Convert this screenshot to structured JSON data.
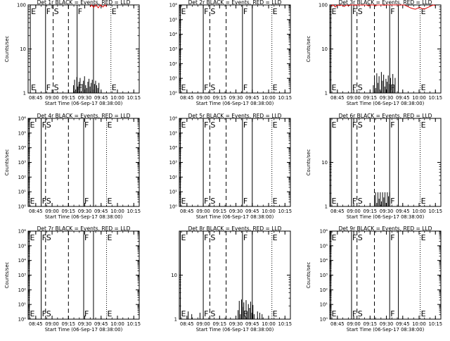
{
  "window": {
    "background": "#ffffff",
    "foreground": "#000000",
    "lld_color": "#e00000"
  },
  "chart_data": [
    {
      "type": "line",
      "title": "Det 1r BLACK = Events, RED = LLD",
      "xlabel": "Start Time (06-Sep-17 08:38:00)",
      "ylabel": "Counts/sec",
      "yscale": "log",
      "ylim": [
        1,
        100
      ],
      "y_ticks": [
        "1",
        "10",
        "100"
      ],
      "x_ticks": [
        "08:45",
        "09:00",
        "09:15",
        "09:30",
        "09:45",
        "10:00",
        "10:15"
      ],
      "xlim": [
        "08:38",
        "10:20"
      ],
      "markers": [
        {
          "label": "E",
          "x": "08:40",
          "line": "solid"
        },
        {
          "label": "F",
          "x": "08:54",
          "line": "solid"
        },
        {
          "label": "S",
          "x": "09:01",
          "line": "dashed"
        },
        {
          "label": "F",
          "x": "09:23",
          "line": "solid"
        },
        {
          "label": "E",
          "x": "09:54",
          "line": "dotted"
        }
      ],
      "extra_lines": [
        {
          "x": "09:15",
          "line": "dashed"
        },
        {
          "x": "09:38",
          "line": "solid"
        }
      ],
      "series": [
        {
          "color": "#000000",
          "style": "hist",
          "x_start": "08:38",
          "x_end": "09:43",
          "values": [
            0,
            0,
            0,
            0,
            0,
            0,
            0,
            0,
            0,
            0,
            0,
            0,
            0,
            0,
            0,
            0,
            0,
            0,
            0,
            0,
            0,
            0,
            0,
            0,
            0,
            0,
            0,
            0,
            0,
            0,
            0,
            0,
            0,
            0,
            0,
            0,
            0,
            0,
            0,
            0,
            0,
            1.5,
            2,
            1.2,
            2.3,
            1.4,
            1.8,
            2.2,
            1.1,
            1.6,
            1.9,
            2.4,
            1.5,
            1.3,
            1.8,
            2.1,
            1.4,
            1.7,
            2,
            1.2,
            1.6,
            1.9,
            1.5,
            1.3,
            1.7
          ]
        },
        {
          "color": "#e00000",
          "style": "line",
          "x_start": "09:35",
          "x_end": "09:50",
          "values": [
            90,
            100,
            95,
            88,
            97,
            100,
            92,
            86,
            95,
            100,
            93,
            90,
            96,
            100,
            91
          ]
        }
      ]
    },
    {
      "type": "line",
      "title": "Det 2r BLACK = Events, RED = LLD",
      "xlabel": "Start Time (06-Sep-17 08:38:00)",
      "ylabel": "",
      "yscale": "log",
      "ylim": [
        1,
        1000000
      ],
      "y_ticks": [
        "10⁰",
        "10¹",
        "10²",
        "10³",
        "10⁴",
        "10⁵",
        "10⁶"
      ],
      "x_ticks": [
        "08:45",
        "09:00",
        "09:15",
        "09:30",
        "09:45",
        "10:00",
        "10:15"
      ],
      "xlim": [
        "08:38",
        "10:20"
      ],
      "markers": [
        {
          "label": "E",
          "x": "08:39",
          "line": "solid"
        },
        {
          "label": "F",
          "x": "09:00",
          "line": "solid"
        },
        {
          "label": "S",
          "x": "09:06",
          "line": "dashed"
        },
        {
          "label": "F",
          "x": "09:36",
          "line": "solid"
        },
        {
          "label": "E",
          "x": "10:03",
          "line": "dotted"
        }
      ],
      "extra_lines": [
        {
          "x": "09:21",
          "line": "dashed"
        },
        {
          "x": "09:45",
          "line": "solid"
        }
      ],
      "series": []
    },
    {
      "type": "line",
      "title": "Det 3r BLACK = Events, RED = LLD",
      "xlabel": "Start Time (06-Sep-17 08:38:00)",
      "ylabel": "Counts/sec",
      "yscale": "log",
      "ylim": [
        1,
        100
      ],
      "y_ticks": [
        "1",
        "10",
        "100"
      ],
      "x_ticks": [
        "08:45",
        "09:00",
        "09:15",
        "09:30",
        "09:45",
        "10:00",
        "10:15"
      ],
      "xlim": [
        "08:38",
        "10:20"
      ],
      "markers": [
        {
          "label": "E",
          "x": "08:39",
          "line": "solid"
        },
        {
          "label": "F",
          "x": "08:58",
          "line": "solid"
        },
        {
          "label": "S",
          "x": "09:03",
          "line": "dashed"
        },
        {
          "label": "F",
          "x": "09:33",
          "line": "solid"
        },
        {
          "label": "E",
          "x": "10:01",
          "line": "dotted"
        }
      ],
      "extra_lines": [
        {
          "x": "09:19",
          "line": "dashed"
        },
        {
          "x": "09:41",
          "line": "solid"
        }
      ],
      "series": [
        {
          "color": "#000000",
          "style": "hist",
          "x_start": "09:18",
          "x_end": "09:38",
          "values": [
            1.5,
            2.2,
            1.3,
            2.8,
            1.7,
            2.4,
            1.2,
            3,
            1.9,
            2.6,
            1.4,
            2.1,
            1.8,
            2.5,
            1.6,
            2.2,
            1.3,
            2.7,
            1.5,
            2.2
          ]
        },
        {
          "color": "#e00000",
          "style": "line",
          "x_start": "08:39",
          "x_end": "10:15",
          "values": [
            95,
            100,
            90,
            100,
            97,
            100,
            92,
            100,
            96,
            100,
            100,
            98,
            100,
            100,
            99,
            100,
            100,
            95,
            100,
            100,
            97,
            100,
            100,
            100,
            98,
            100,
            100,
            100,
            100,
            100,
            100,
            99,
            100,
            100,
            95,
            90,
            85,
            82,
            80,
            84,
            88,
            82,
            80,
            85,
            90,
            95,
            100,
            97
          ]
        }
      ]
    },
    {
      "type": "line",
      "title": "Det 4r BLACK = Events, RED = LLD",
      "xlabel": "Start Time (06-Sep-17 08:38:00)",
      "ylabel": "Counts/sec",
      "yscale": "log",
      "ylim": [
        1,
        1000000
      ],
      "y_ticks": [
        "10⁰",
        "10¹",
        "10²",
        "10³",
        "10⁴",
        "10⁵",
        "10⁶"
      ],
      "x_ticks": [
        "08:45",
        "09:00",
        "09:15",
        "09:30",
        "09:45",
        "10:00",
        "10:15"
      ],
      "xlim": [
        "08:38",
        "10:20"
      ],
      "markers": [
        {
          "label": "E",
          "x": "08:39",
          "line": "solid"
        },
        {
          "label": "F",
          "x": "08:50",
          "line": "solid"
        },
        {
          "label": "S",
          "x": "08:54",
          "line": "dashed"
        },
        {
          "label": "F",
          "x": "09:29",
          "line": "solid"
        },
        {
          "label": "E",
          "x": "09:50",
          "line": "dotted"
        }
      ],
      "extra_lines": [
        {
          "x": "09:15",
          "line": "dashed"
        },
        {
          "x": "09:38",
          "line": "solid"
        }
      ],
      "series": []
    },
    {
      "type": "line",
      "title": "Det 5r BLACK = Events, RED = LLD",
      "xlabel": "Start Time (06-Sep-17 08:38:00)",
      "ylabel": "",
      "yscale": "log",
      "ylim": [
        1,
        1000000
      ],
      "y_ticks": [
        "10⁰",
        "10¹",
        "10²",
        "10³",
        "10⁴",
        "10⁵",
        "10⁶"
      ],
      "x_ticks": [
        "08:45",
        "09:00",
        "09:15",
        "09:30",
        "09:45",
        "10:00",
        "10:15"
      ],
      "xlim": [
        "08:38",
        "10:20"
      ],
      "markers": [
        {
          "label": "E",
          "x": "08:39",
          "line": "solid"
        },
        {
          "label": "F",
          "x": "09:00",
          "line": "solid"
        },
        {
          "label": "S",
          "x": "09:06",
          "line": "dashed"
        },
        {
          "label": "F",
          "x": "09:36",
          "line": "solid"
        },
        {
          "label": "E",
          "x": "10:03",
          "line": "dotted"
        }
      ],
      "extra_lines": [
        {
          "x": "09:21",
          "line": "dashed"
        },
        {
          "x": "09:45",
          "line": "solid"
        }
      ],
      "series": []
    },
    {
      "type": "line",
      "title": "Det 6r BLACK = Events, RED = LLD",
      "xlabel": "Start Time (06-Sep-17 08:38:00)",
      "ylabel": "Counts/sec",
      "yscale": "log",
      "ylim": [
        1,
        100
      ],
      "y_ticks": [
        "1",
        "10"
      ],
      "x_ticks": [
        "08:45",
        "09:00",
        "09:15",
        "09:30",
        "09:45",
        "10:00",
        "10:15"
      ],
      "xlim": [
        "08:38",
        "10:20"
      ],
      "markers": [
        {
          "label": "E",
          "x": "08:39",
          "line": "solid"
        },
        {
          "label": "F",
          "x": "08:58",
          "line": "solid"
        },
        {
          "label": "S",
          "x": "09:03",
          "line": "dashed"
        },
        {
          "label": "F",
          "x": "09:33",
          "line": "solid"
        },
        {
          "label": "E",
          "x": "10:01",
          "line": "dotted"
        }
      ],
      "extra_lines": [
        {
          "x": "09:19",
          "line": "dashed"
        },
        {
          "x": "09:41",
          "line": "solid"
        }
      ],
      "series": [
        {
          "color": "#000000",
          "style": "hist",
          "x_start": "09:19",
          "x_end": "09:33",
          "values": [
            1.8,
            2.1,
            1.2,
            2.1,
            1.5,
            2.1,
            1.3,
            2.1,
            1.6,
            2.1,
            1.2,
            2.1,
            1.7,
            2.1
          ]
        }
      ]
    },
    {
      "type": "line",
      "title": "Det 7r BLACK = Events, RED = LLD",
      "xlabel": "Start Time (06-Sep-17 08:38:00)",
      "ylabel": "Counts/sec",
      "yscale": "log",
      "ylim": [
        1,
        1000000
      ],
      "y_ticks": [
        "10⁰",
        "10¹",
        "10²",
        "10³",
        "10⁴",
        "10⁵",
        "10⁶"
      ],
      "x_ticks": [
        "08:45",
        "09:00",
        "09:15",
        "09:30",
        "09:45",
        "10:00",
        "10:15"
      ],
      "xlim": [
        "08:38",
        "10:20"
      ],
      "markers": [
        {
          "label": "E",
          "x": "08:39",
          "line": "solid"
        },
        {
          "label": "F",
          "x": "08:50",
          "line": "solid"
        },
        {
          "label": "S",
          "x": "08:54",
          "line": "dashed"
        },
        {
          "label": "F",
          "x": "09:29",
          "line": "solid"
        },
        {
          "label": "E",
          "x": "09:50",
          "line": "dotted"
        }
      ],
      "extra_lines": [
        {
          "x": "09:15",
          "line": "dashed"
        },
        {
          "x": "09:38",
          "line": "solid"
        }
      ],
      "series": []
    },
    {
      "type": "line",
      "title": "Det 8r BLACK = Events, RED = LLD",
      "xlabel": "Start Time (06-Sep-17 08:38:00)",
      "ylabel": "",
      "yscale": "log",
      "ylim": [
        1,
        100
      ],
      "y_ticks": [
        "1",
        "10"
      ],
      "x_ticks": [
        "08:45",
        "09:00",
        "09:15",
        "09:30",
        "09:45",
        "10:00",
        "10:15"
      ],
      "xlim": [
        "08:38",
        "10:20"
      ],
      "markers": [
        {
          "label": "E",
          "x": "08:39",
          "line": "solid"
        },
        {
          "label": "F",
          "x": "09:00",
          "line": "solid"
        },
        {
          "label": "S",
          "x": "09:06",
          "line": "dashed"
        },
        {
          "label": "F",
          "x": "09:36",
          "line": "solid"
        },
        {
          "label": "E",
          "x": "10:03",
          "line": "dotted"
        }
      ],
      "extra_lines": [
        {
          "x": "09:21",
          "line": "dashed"
        },
        {
          "x": "09:45",
          "line": "solid"
        }
      ],
      "series": [
        {
          "color": "#000000",
          "style": "hist",
          "x_start": "08:44",
          "x_end": "08:57",
          "values": [
            0,
            0,
            1.5,
            0,
            0,
            1.3,
            0,
            0,
            0,
            0,
            0,
            0,
            1.4
          ]
        },
        {
          "color": "#000000",
          "style": "hist",
          "x_start": "09:32",
          "x_end": "09:54",
          "values": [
            1.6,
            2.6,
            1.3,
            2.8,
            1.9,
            2.4,
            1.2,
            2.7,
            1.5,
            2.2,
            1.8,
            2.5,
            1.4,
            2.1,
            1.3,
            0,
            0,
            1.5,
            0,
            1.4,
            0,
            1.3
          ]
        }
      ]
    },
    {
      "type": "line",
      "title": "Det 9r BLACK = Events, RED = LLD",
      "xlabel": "Start Time (06-Sep-17 08:38:00)",
      "ylabel": "Counts/sec",
      "yscale": "log",
      "ylim": [
        1,
        1000000
      ],
      "y_ticks": [
        "10⁰",
        "10¹",
        "10²",
        "10³",
        "10⁴",
        "10⁵",
        "10⁶"
      ],
      "x_ticks": [
        "08:45",
        "09:00",
        "09:15",
        "09:30",
        "09:45",
        "10:00",
        "10:15"
      ],
      "xlim": [
        "08:38",
        "10:20"
      ],
      "markers": [
        {
          "label": "E",
          "x": "08:39",
          "line": "solid"
        },
        {
          "label": "F",
          "x": "08:58",
          "line": "solid"
        },
        {
          "label": "S",
          "x": "09:03",
          "line": "dashed"
        },
        {
          "label": "F",
          "x": "09:33",
          "line": "solid"
        },
        {
          "label": "E",
          "x": "10:01",
          "line": "dotted"
        }
      ],
      "extra_lines": [
        {
          "x": "09:19",
          "line": "dashed"
        },
        {
          "x": "09:41",
          "line": "solid"
        }
      ],
      "series": []
    }
  ]
}
